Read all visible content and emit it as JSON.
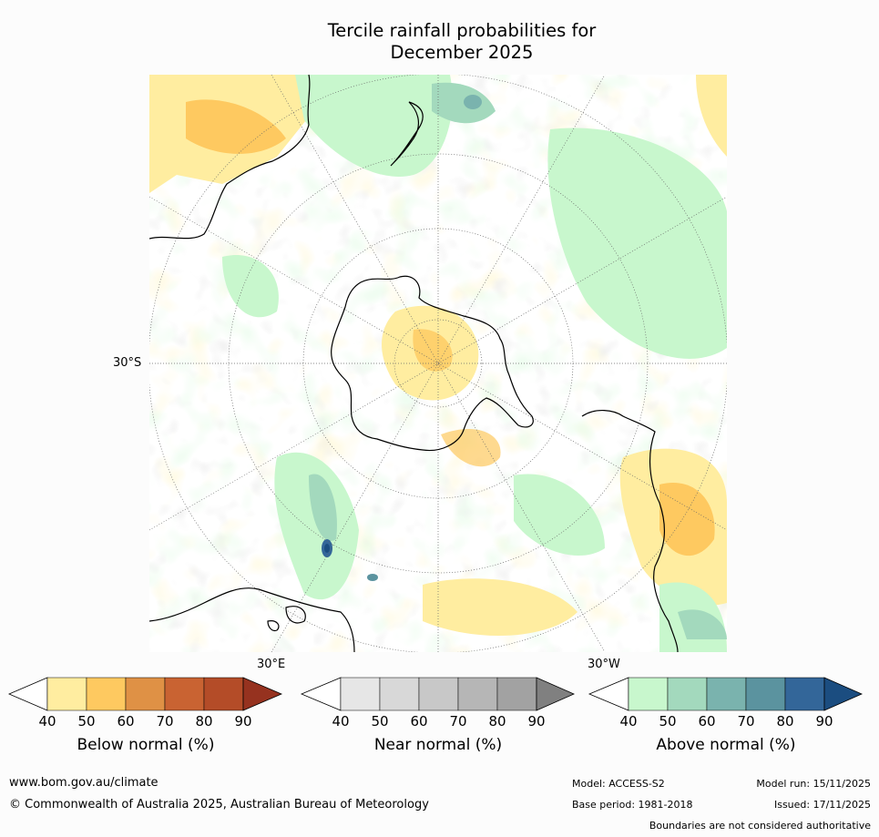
{
  "title_line1": "Tercile rainfall probabilities for",
  "title_line2": "December 2025",
  "lat_label": "30°S",
  "lon_labels": {
    "east": "30°E",
    "west": "30°W"
  },
  "colorbars": [
    {
      "label": "Below normal (%)",
      "ticks": [
        "40",
        "50",
        "60",
        "70",
        "80",
        "90"
      ],
      "colors": [
        "#ffffff",
        "#ffeda0",
        "#fec960",
        "#df9145",
        "#c96332",
        "#b44c28",
        "#96321f"
      ]
    },
    {
      "label": "Near normal (%)",
      "ticks": [
        "40",
        "50",
        "60",
        "70",
        "80",
        "90"
      ],
      "colors": [
        "#ffffff",
        "#e6e6e6",
        "#d8d8d8",
        "#c8c8c8",
        "#b6b6b6",
        "#a2a2a2",
        "#808080"
      ]
    },
    {
      "label": "Above normal (%)",
      "ticks": [
        "40",
        "50",
        "60",
        "70",
        "80",
        "90"
      ],
      "colors": [
        "#ffffff",
        "#c8f7cd",
        "#a3d9bd",
        "#7ab3ae",
        "#5b939f",
        "#336699",
        "#1b4d80"
      ]
    }
  ],
  "footer": {
    "website": "www.bom.gov.au/climate",
    "copyright": "© Commonwealth of Australia 2025, Australian Bureau of Meteorology",
    "model": "Model: ACCESS-S2",
    "base_period": "Base period: 1981-2018",
    "model_run": "Model run: 15/11/2025",
    "issued": "Issued: 17/11/2025",
    "boundaries_note": "Boundaries are not considered authoritative"
  }
}
